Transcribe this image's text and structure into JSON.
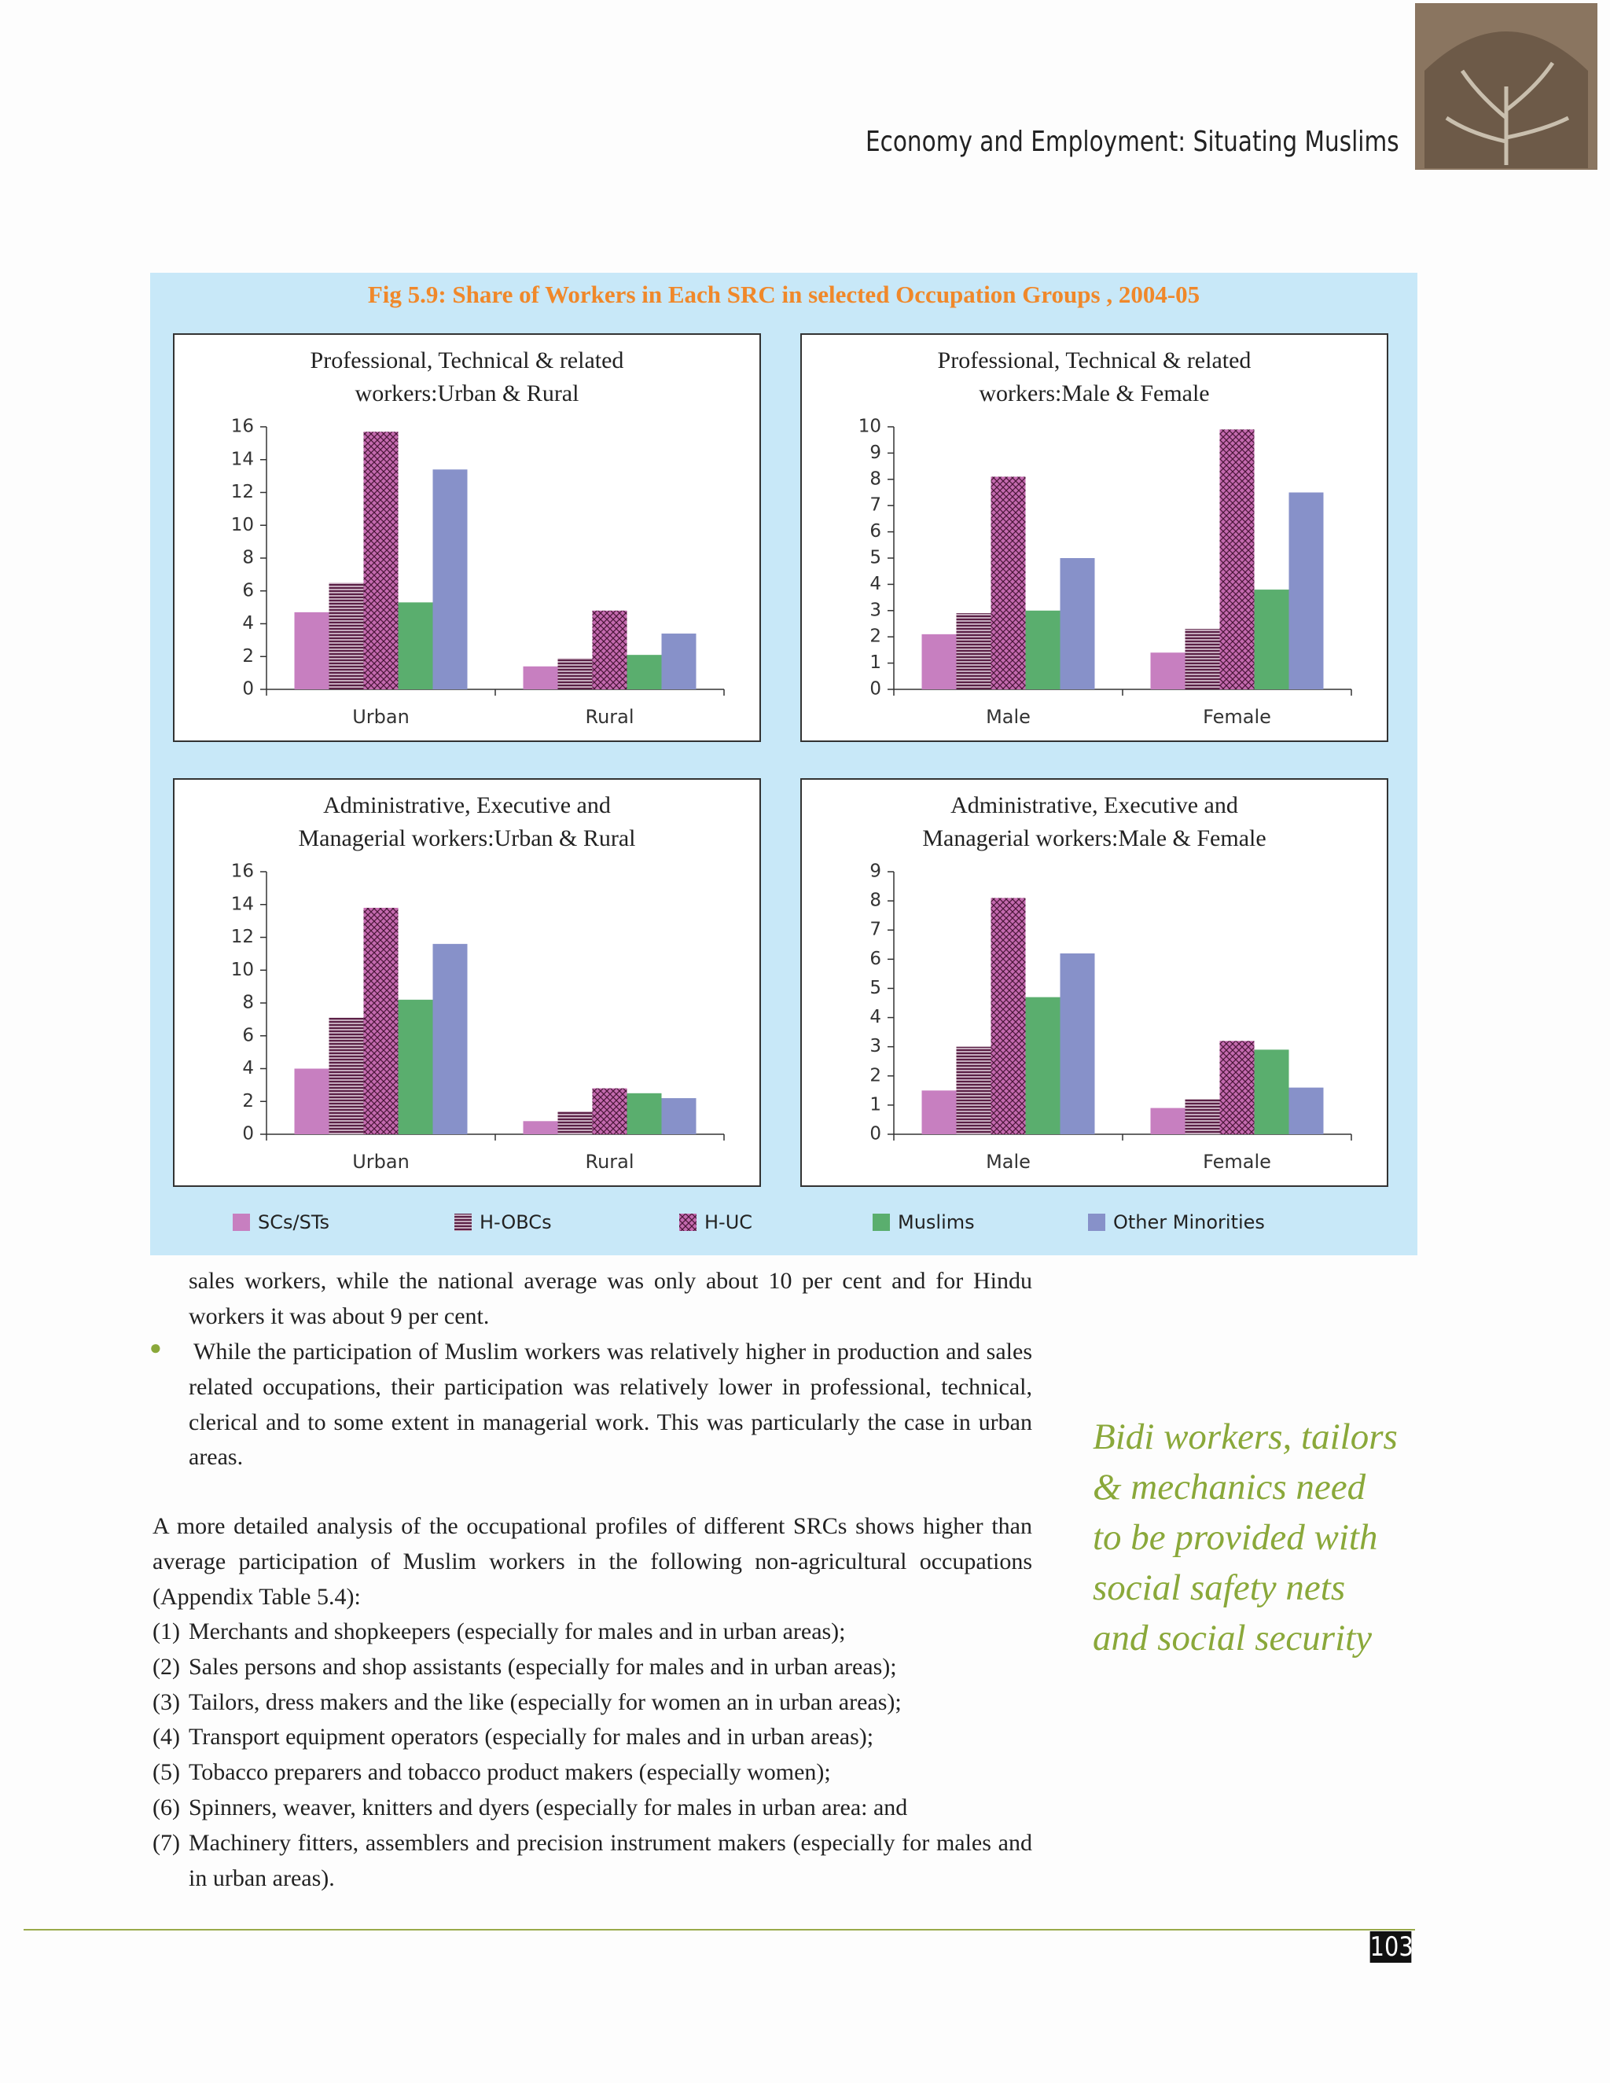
{
  "header": {
    "title": "Economy and Employment: Situating Muslims",
    "page_number": "103"
  },
  "figure": {
    "title": "Fig 5.9: Share of Workers in Each SRC in selected Occupation Groups , 2004-05"
  },
  "chart_data": [
    {
      "type": "bar",
      "title": [
        "Professional, Technical & related",
        "workers:Urban & Rural"
      ],
      "categories": [
        "Urban",
        "Rural"
      ],
      "ylim": [
        0,
        16
      ],
      "yticks": [
        0,
        2,
        4,
        6,
        8,
        10,
        12,
        14,
        16
      ],
      "series": [
        {
          "name": "SCs/STs",
          "color": "#c77fc0",
          "values": [
            4.7,
            1.4
          ]
        },
        {
          "name": "H-OBCs",
          "color": "#5a1f45",
          "pattern": "hlines",
          "values": [
            6.5,
            1.9
          ]
        },
        {
          "name": "H-UC",
          "color": "#c46aaf",
          "pattern": "crosshatch",
          "values": [
            15.7,
            4.8
          ]
        },
        {
          "name": "Muslims",
          "color": "#5aae6e",
          "values": [
            5.3,
            2.1
          ]
        },
        {
          "name": "Other Minorities",
          "color": "#8791c9",
          "values": [
            13.4,
            3.4
          ]
        }
      ]
    },
    {
      "type": "bar",
      "title": [
        "Professional, Technical & related",
        "workers:Male & Female"
      ],
      "categories": [
        "Male",
        "Female"
      ],
      "ylim": [
        0,
        10
      ],
      "yticks": [
        0,
        1,
        2,
        3,
        4,
        5,
        6,
        7,
        8,
        9,
        10
      ],
      "series": [
        {
          "name": "SCs/STs",
          "color": "#c77fc0",
          "values": [
            2.1,
            1.4
          ]
        },
        {
          "name": "H-OBCs",
          "color": "#5a1f45",
          "pattern": "hlines",
          "values": [
            2.9,
            2.3
          ]
        },
        {
          "name": "H-UC",
          "color": "#c46aaf",
          "pattern": "crosshatch",
          "values": [
            8.1,
            9.9
          ]
        },
        {
          "name": "Muslims",
          "color": "#5aae6e",
          "values": [
            3.0,
            3.8
          ]
        },
        {
          "name": "Other Minorities",
          "color": "#8791c9",
          "values": [
            5.0,
            7.5
          ]
        }
      ]
    },
    {
      "type": "bar",
      "title": [
        "Administrative, Executive and",
        "Managerial workers:Urban & Rural"
      ],
      "categories": [
        "Urban",
        "Rural"
      ],
      "ylim": [
        0,
        16
      ],
      "yticks": [
        0,
        2,
        4,
        6,
        8,
        10,
        12,
        14,
        16
      ],
      "series": [
        {
          "name": "SCs/STs",
          "color": "#c77fc0",
          "values": [
            4.0,
            0.8
          ]
        },
        {
          "name": "H-OBCs",
          "color": "#5a1f45",
          "pattern": "hlines",
          "values": [
            7.1,
            1.4
          ]
        },
        {
          "name": "H-UC",
          "color": "#c46aaf",
          "pattern": "crosshatch",
          "values": [
            13.8,
            2.8
          ]
        },
        {
          "name": "Muslims",
          "color": "#5aae6e",
          "values": [
            8.2,
            2.5
          ]
        },
        {
          "name": "Other Minorities",
          "color": "#8791c9",
          "values": [
            11.6,
            2.2
          ]
        }
      ]
    },
    {
      "type": "bar",
      "title": [
        "Administrative, Executive and",
        "Managerial workers:Male & Female"
      ],
      "categories": [
        "Male",
        "Female"
      ],
      "ylim": [
        0,
        9
      ],
      "yticks": [
        0,
        1,
        2,
        3,
        4,
        5,
        6,
        7,
        8,
        9
      ],
      "series": [
        {
          "name": "SCs/STs",
          "color": "#c77fc0",
          "values": [
            1.5,
            0.9
          ]
        },
        {
          "name": "H-OBCs",
          "color": "#5a1f45",
          "pattern": "hlines",
          "values": [
            3.0,
            1.2
          ]
        },
        {
          "name": "H-UC",
          "color": "#c46aaf",
          "pattern": "crosshatch",
          "values": [
            8.1,
            3.2
          ]
        },
        {
          "name": "Muslims",
          "color": "#5aae6e",
          "values": [
            4.7,
            2.9
          ]
        },
        {
          "name": "Other Minorities",
          "color": "#8791c9",
          "values": [
            6.2,
            1.6
          ]
        }
      ]
    }
  ],
  "body": {
    "continuation": "sales workers, while the national average was only about 10 per cent and for Hindu workers it was about 9 per cent.",
    "bullet": "While the participation of Muslim workers was relatively higher in production and sales related occupations, their participation was relatively lower in professional, technical, clerical and to some extent in managerial work. This was particularly the case in urban areas.",
    "paragraph": "A more detailed analysis of the occupational profiles of different SRCs shows higher than average participation of Muslim workers in the following non-agricultural occupations (Appendix Table 5.4):",
    "list": [
      {
        "number": "(1)",
        "text": "Merchants and shopkeepers (especially for males and in urban areas);"
      },
      {
        "number": "(2)",
        "text": "Sales persons and shop assistants (especially for males and in urban areas);"
      },
      {
        "number": "(3)",
        "text": "Tailors, dress makers and the like (especially for women an in urban areas);"
      },
      {
        "number": "(4)",
        "text": "Transport equipment operators (especially for males and in urban areas);"
      },
      {
        "number": "(5)",
        "text": "Tobacco preparers and tobacco product makers (especially women);"
      },
      {
        "number": "(6)",
        "text": "Spinners, weaver, knitters and dyers (especially for males in urban area: and"
      },
      {
        "number": "(7)",
        "text": "Machinery fitters, assemblers and precision instrument makers (especially for males and in urban areas)."
      }
    ]
  },
  "sidebar": {
    "lines": [
      "Bidi workers, tailors",
      "& mechanics need",
      "to be provided with",
      "social safety nets",
      "and social security"
    ]
  }
}
